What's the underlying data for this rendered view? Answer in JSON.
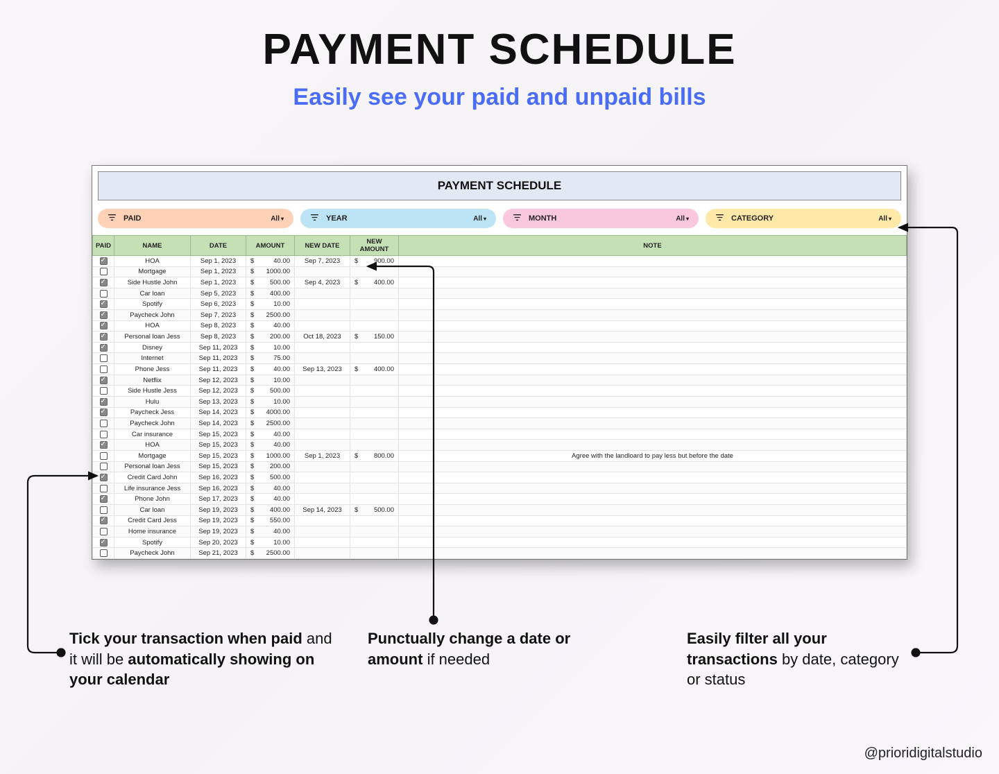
{
  "hero": {
    "title": "PAYMENT SCHEDULE",
    "subtitle": "Easily see your paid and unpaid bills"
  },
  "panel": {
    "title": "PAYMENT SCHEDULE"
  },
  "filters": {
    "paid": {
      "label": "PAID",
      "value": "All",
      "color": "#ffd2b8"
    },
    "year": {
      "label": "YEAR",
      "value": "All",
      "color": "#bce4f5"
    },
    "month": {
      "label": "MONTH",
      "value": "All",
      "color": "#f9c8de"
    },
    "category": {
      "label": "CATEGORY",
      "value": "All",
      "color": "#ffe9a8"
    }
  },
  "columns": [
    "PAID",
    "NAME",
    "DATE",
    "AMOUNT",
    "NEW DATE",
    "NEW AMOUNT",
    "NOTE"
  ],
  "currency": "$",
  "rows": [
    {
      "paid": true,
      "name": "HOA",
      "date": "Sep 1, 2023",
      "amount": "40.00",
      "new_date": "Sep 7, 2023",
      "new_amount": "900.00",
      "note": ""
    },
    {
      "paid": false,
      "name": "Mortgage",
      "date": "Sep 1, 2023",
      "amount": "1000.00",
      "new_date": "",
      "new_amount": "",
      "note": ""
    },
    {
      "paid": true,
      "name": "Side Hustle John",
      "date": "Sep 1, 2023",
      "amount": "500.00",
      "new_date": "Sep 4, 2023",
      "new_amount": "400.00",
      "note": ""
    },
    {
      "paid": false,
      "name": "Car loan",
      "date": "Sep 5, 2023",
      "amount": "400.00",
      "new_date": "",
      "new_amount": "",
      "note": ""
    },
    {
      "paid": true,
      "name": "Spotify",
      "date": "Sep 6, 2023",
      "amount": "10.00",
      "new_date": "",
      "new_amount": "",
      "note": ""
    },
    {
      "paid": true,
      "name": "Paycheck John",
      "date": "Sep 7, 2023",
      "amount": "2500.00",
      "new_date": "",
      "new_amount": "",
      "note": ""
    },
    {
      "paid": true,
      "name": "HOA",
      "date": "Sep 8, 2023",
      "amount": "40.00",
      "new_date": "",
      "new_amount": "",
      "note": ""
    },
    {
      "paid": true,
      "name": "Personal loan Jess",
      "date": "Sep 8, 2023",
      "amount": "200.00",
      "new_date": "Oct 18, 2023",
      "new_amount": "150.00",
      "note": ""
    },
    {
      "paid": true,
      "name": "Disney",
      "date": "Sep 11, 2023",
      "amount": "10.00",
      "new_date": "",
      "new_amount": "",
      "note": ""
    },
    {
      "paid": false,
      "name": "Internet",
      "date": "Sep 11, 2023",
      "amount": "75.00",
      "new_date": "",
      "new_amount": "",
      "note": ""
    },
    {
      "paid": false,
      "name": "Phone Jess",
      "date": "Sep 11, 2023",
      "amount": "40.00",
      "new_date": "Sep 13, 2023",
      "new_amount": "400.00",
      "note": ""
    },
    {
      "paid": true,
      "name": "Netflix",
      "date": "Sep 12, 2023",
      "amount": "10.00",
      "new_date": "",
      "new_amount": "",
      "note": ""
    },
    {
      "paid": false,
      "name": "Side Hustle Jess",
      "date": "Sep 12, 2023",
      "amount": "500.00",
      "new_date": "",
      "new_amount": "",
      "note": ""
    },
    {
      "paid": true,
      "name": "Hulu",
      "date": "Sep 13, 2023",
      "amount": "10.00",
      "new_date": "",
      "new_amount": "",
      "note": ""
    },
    {
      "paid": true,
      "name": "Paycheck Jess",
      "date": "Sep 14, 2023",
      "amount": "4000.00",
      "new_date": "",
      "new_amount": "",
      "note": ""
    },
    {
      "paid": false,
      "name": "Paycheck John",
      "date": "Sep 14, 2023",
      "amount": "2500.00",
      "new_date": "",
      "new_amount": "",
      "note": ""
    },
    {
      "paid": false,
      "name": "Car insurance",
      "date": "Sep 15, 2023",
      "amount": "40.00",
      "new_date": "",
      "new_amount": "",
      "note": ""
    },
    {
      "paid": true,
      "name": "HOA",
      "date": "Sep 15, 2023",
      "amount": "40.00",
      "new_date": "",
      "new_amount": "",
      "note": ""
    },
    {
      "paid": false,
      "name": "Mortgage",
      "date": "Sep 15, 2023",
      "amount": "1000.00",
      "new_date": "Sep 1, 2023",
      "new_amount": "800.00",
      "note": "Agree with the landloard to pay less but before the date"
    },
    {
      "paid": false,
      "name": "Personal loan Jess",
      "date": "Sep 15, 2023",
      "amount": "200.00",
      "new_date": "",
      "new_amount": "",
      "note": ""
    },
    {
      "paid": true,
      "name": "Credit Card John",
      "date": "Sep 16, 2023",
      "amount": "500.00",
      "new_date": "",
      "new_amount": "",
      "note": ""
    },
    {
      "paid": false,
      "name": "Life insurance Jess",
      "date": "Sep 16, 2023",
      "amount": "40.00",
      "new_date": "",
      "new_amount": "",
      "note": ""
    },
    {
      "paid": true,
      "name": "Phone John",
      "date": "Sep 17, 2023",
      "amount": "40.00",
      "new_date": "",
      "new_amount": "",
      "note": ""
    },
    {
      "paid": false,
      "name": "Car loan",
      "date": "Sep 19, 2023",
      "amount": "400.00",
      "new_date": "Sep 14, 2023",
      "new_amount": "500.00",
      "note": ""
    },
    {
      "paid": true,
      "name": "Credit Card Jess",
      "date": "Sep 19, 2023",
      "amount": "550.00",
      "new_date": "",
      "new_amount": "",
      "note": ""
    },
    {
      "paid": false,
      "name": "Home insurance",
      "date": "Sep 19, 2023",
      "amount": "40.00",
      "new_date": "",
      "new_amount": "",
      "note": ""
    },
    {
      "paid": true,
      "name": "Spotify",
      "date": "Sep 20, 2023",
      "amount": "10.00",
      "new_date": "",
      "new_amount": "",
      "note": ""
    },
    {
      "paid": false,
      "name": "Paycheck John",
      "date": "Sep 21, 2023",
      "amount": "2500.00",
      "new_date": "",
      "new_amount": "",
      "note": ""
    }
  ],
  "callouts": {
    "left": "Tick your transaction when paid|and it will be|automatically showing on your calendar",
    "left_bold_1": "Tick your transaction when paid",
    "left_plain_1": " and it will be ",
    "left_bold_2": "automatically showing on your calendar",
    "mid_bold": "Punctually change a date or amount",
    "mid_plain": " if needed",
    "right_bold": "Easily filter all your transactions",
    "right_plain": " by date, category or status"
  },
  "handle": "@prioridigitalstudio",
  "style": {
    "header_bg": "#c5e0b4",
    "panel_title_bg": "#e2e9f4",
    "accent_blue": "#4a6cf7"
  }
}
